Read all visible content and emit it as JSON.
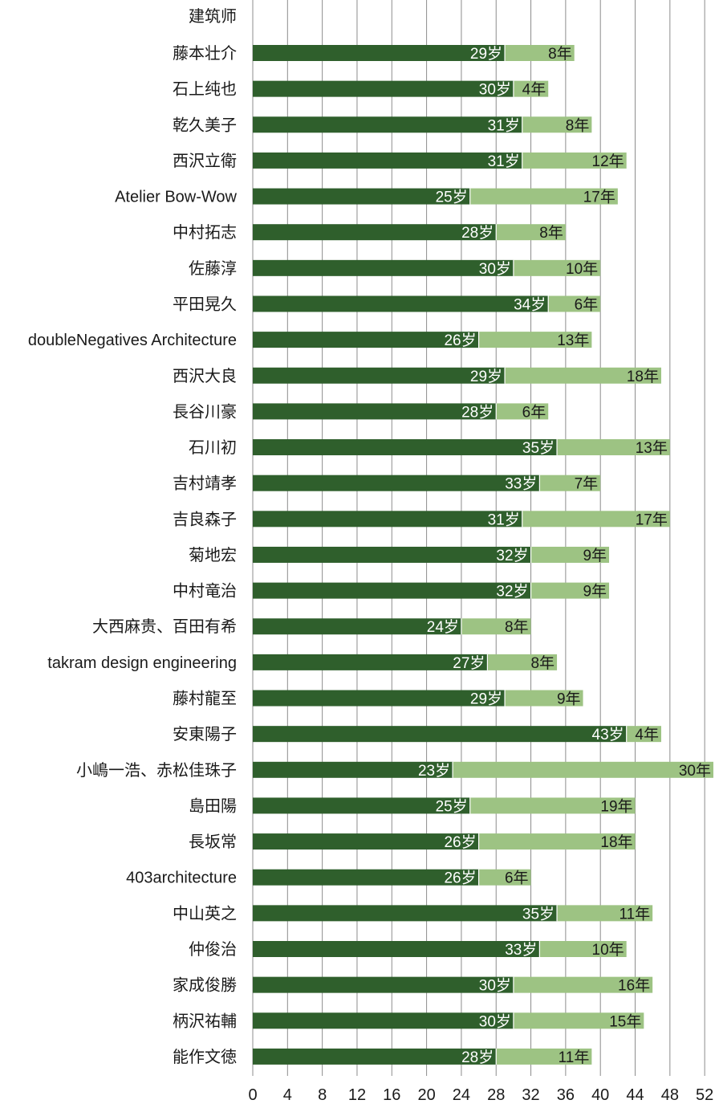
{
  "chart_data": {
    "type": "bar",
    "orientation": "horizontal",
    "stacked": true,
    "header": "建筑师",
    "categories": [
      "藤本壮介",
      "石上纯也",
      "乾久美子",
      "西沢立衛",
      "Atelier Bow-Wow",
      "中村拓志",
      "佐藤淳",
      "平田晃久",
      "doubleNegatives Architecture",
      "西沢大良",
      "長谷川豪",
      "石川初",
      "吉村靖孝",
      "吉良森子",
      "菊地宏",
      "中村竜治",
      "大西麻贵、百田有希",
      "takram design engineering",
      "藤村龍至",
      "安東陽子",
      "小嶋一浩、赤松佳珠子",
      "島田陽",
      "長坂常",
      "403architecture",
      "中山英之",
      "仲俊治",
      "家成俊勝",
      "柄沢祐輔",
      "能作文徳"
    ],
    "series": [
      {
        "values": [
          29,
          30,
          31,
          31,
          25,
          28,
          30,
          34,
          26,
          29,
          28,
          35,
          33,
          31,
          32,
          32,
          24,
          27,
          29,
          43,
          23,
          25,
          26,
          26,
          35,
          33,
          30,
          30,
          28
        ],
        "label_suffix": "岁",
        "color": "#2f5f2c"
      },
      {
        "values": [
          8,
          4,
          8,
          12,
          17,
          8,
          10,
          6,
          13,
          18,
          6,
          13,
          7,
          17,
          9,
          9,
          8,
          8,
          9,
          4,
          30,
          19,
          18,
          6,
          11,
          10,
          16,
          15,
          11
        ],
        "label_suffix": "年",
        "color": "#9dc383"
      }
    ],
    "xlim": [
      0,
      52
    ],
    "xticks": [
      0,
      4,
      8,
      12,
      16,
      20,
      24,
      28,
      32,
      36,
      40,
      44,
      48,
      52
    ],
    "grid": true
  }
}
